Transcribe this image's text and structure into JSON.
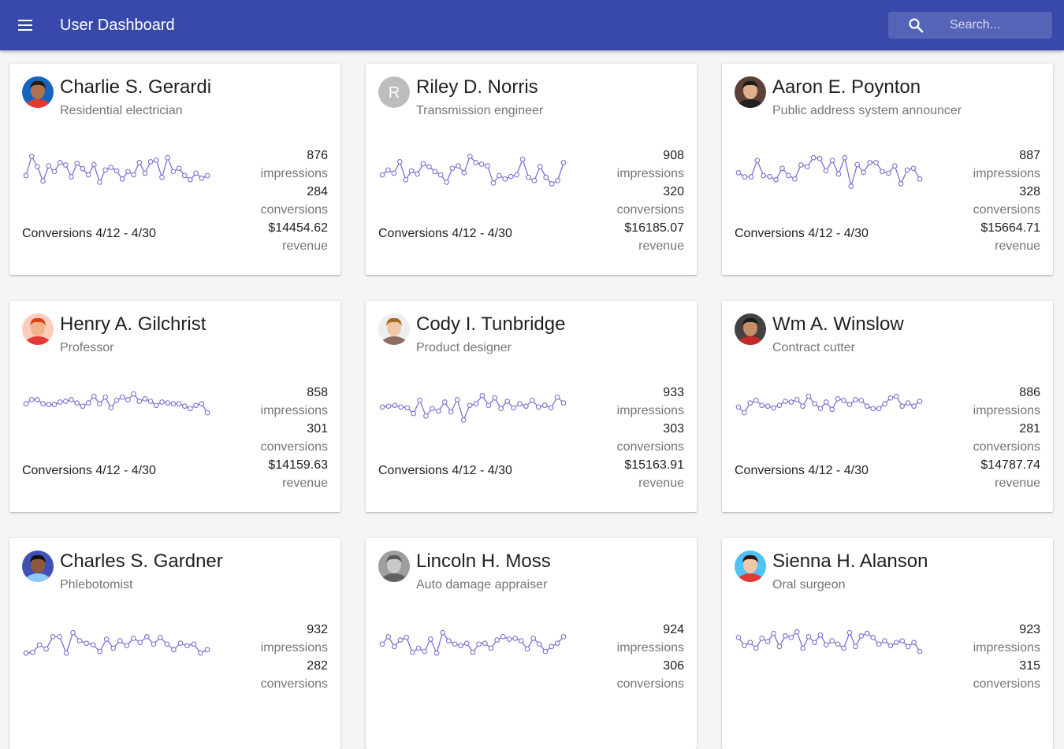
{
  "header": {
    "title": "User Dashboard",
    "search_placeholder": "Search...",
    "background": "#3949ab"
  },
  "spark_color": "#7e6fd1",
  "cards": [
    {
      "name": "Charlie S. Gerardi",
      "job": "Residential electrician",
      "avatar": {
        "type": "photo",
        "skin": "#b0714f",
        "hair": "#2b1a12",
        "bg": "#1565c0",
        "shirt": "#e53935"
      },
      "impressions": "876",
      "impressions_label": "impressions",
      "conversions": "284",
      "conversions_label": "conversions",
      "revenue": "$14454.62",
      "revenue_label": "revenue",
      "caption": "Conversions 4/12 - 4/30",
      "spark": [
        48,
        95,
        70,
        35,
        72,
        58,
        80,
        74,
        45,
        78,
        65,
        50,
        75,
        32,
        62,
        68,
        60,
        40,
        58,
        50,
        80,
        54,
        82,
        86,
        44,
        92,
        58,
        66,
        48,
        38,
        54,
        42,
        48
      ]
    },
    {
      "name": "Riley D. Norris",
      "job": "Transmission engineer",
      "avatar": {
        "type": "initial",
        "letter": "R",
        "bg": "#bdbdbd"
      },
      "impressions": "908",
      "impressions_label": "impressions",
      "conversions": "320",
      "conversions_label": "conversions",
      "revenue": "$16185.07",
      "revenue_label": "revenue",
      "caption": "Conversions 4/12 - 4/30",
      "spark": [
        50,
        62,
        54,
        82,
        38,
        60,
        52,
        77,
        70,
        58,
        50,
        32,
        66,
        72,
        55,
        95,
        80,
        76,
        72,
        30,
        48,
        40,
        46,
        50,
        88,
        44,
        36,
        70,
        44,
        28,
        36,
        80
      ]
    },
    {
      "name": "Aaron E. Poynton",
      "job": "Public address system announcer",
      "avatar": {
        "type": "photo",
        "skin": "#e0b08d",
        "hair": "#1b1b1b",
        "bg": "#5d4037",
        "shirt": "#212121"
      },
      "impressions": "887",
      "impressions_label": "impressions",
      "conversions": "328",
      "conversions_label": "conversions",
      "revenue": "$15664.71",
      "revenue_label": "revenue",
      "caption": "Conversions 4/12 - 4/30",
      "spark": [
        55,
        45,
        45,
        85,
        48,
        46,
        38,
        66,
        48,
        40,
        74,
        70,
        92,
        90,
        60,
        85,
        52,
        92,
        22,
        75,
        56,
        80,
        80,
        58,
        54,
        72,
        28,
        62,
        66,
        40
      ]
    },
    {
      "name": "Henry A. Gilchrist",
      "job": "Professor",
      "avatar": {
        "type": "photo",
        "skin": "#f1b48f",
        "hair": "#d84315",
        "bg": "#ffccbc",
        "shirt": "#e53935"
      },
      "impressions": "858",
      "impressions_label": "impressions",
      "conversions": "301",
      "conversions_label": "conversions",
      "revenue": "$14159.63",
      "revenue_label": "revenue",
      "caption": "Conversions 4/12 - 4/30",
      "spark": [
        70,
        80,
        80,
        70,
        68,
        68,
        74,
        76,
        80,
        72,
        64,
        72,
        88,
        70,
        86,
        60,
        78,
        86,
        80,
        94,
        76,
        82,
        76,
        66,
        74,
        72,
        70,
        70,
        64,
        58,
        66,
        70,
        48
      ]
    },
    {
      "name": "Cody I. Tunbridge",
      "job": "Product designer",
      "avatar": {
        "type": "photo",
        "skin": "#f0c8a8",
        "hair": "#a86a2a",
        "bg": "#eeeeee",
        "shirt": "#8d6e63"
      },
      "impressions": "933",
      "impressions_label": "impressions",
      "conversions": "303",
      "conversions_label": "conversions",
      "revenue": "$15163.91",
      "revenue_label": "revenue",
      "caption": "Conversions 4/12 - 4/30",
      "spark": [
        62,
        64,
        66,
        62,
        60,
        46,
        78,
        40,
        58,
        52,
        74,
        50,
        80,
        30,
        66,
        70,
        90,
        66,
        84,
        58,
        76,
        60,
        70,
        64,
        78,
        62,
        66,
        60,
        86,
        72
      ]
    },
    {
      "name": "Wm A. Winslow",
      "job": "Contract cutter",
      "avatar": {
        "type": "photo",
        "skin": "#c68d6a",
        "hair": "#1a1a1a",
        "bg": "#424242",
        "shirt": "#c62828"
      },
      "impressions": "886",
      "impressions_label": "impressions",
      "conversions": "281",
      "conversions_label": "conversions",
      "revenue": "$14787.74",
      "revenue_label": "revenue",
      "caption": "Conversions 4/12 - 4/30",
      "spark": [
        62,
        48,
        72,
        78,
        66,
        64,
        60,
        66,
        76,
        74,
        80,
        64,
        88,
        70,
        58,
        74,
        56,
        82,
        78,
        68,
        80,
        78,
        64,
        58,
        58,
        70,
        84,
        88,
        64,
        72,
        64,
        76
      ]
    },
    {
      "name": "Charles S. Gardner",
      "job": "Phlebotomist",
      "avatar": {
        "type": "photo",
        "skin": "#8d5a3b",
        "hair": "#111111",
        "bg": "#3f51b5",
        "shirt": "#90caf9"
      },
      "impressions": "932",
      "impressions_label": "impressions",
      "conversions": "282",
      "conversions_label": "conversions",
      "revenue": "",
      "revenue_label": "",
      "caption": "",
      "spark": [
        40,
        42,
        60,
        50,
        80,
        80,
        40,
        90,
        70,
        64,
        60,
        44,
        74,
        52,
        70,
        58,
        76,
        66,
        80,
        62,
        78,
        62,
        48,
        64,
        58,
        62,
        40,
        48
      ]
    },
    {
      "name": "Lincoln H. Moss",
      "job": "Auto damage appraiser",
      "avatar": {
        "type": "photo",
        "skin": "#c9c9c9",
        "hair": "#5a5a5a",
        "bg": "#9e9e9e",
        "shirt": "#616161"
      },
      "impressions": "924",
      "impressions_label": "impressions",
      "conversions": "306",
      "conversions_label": "conversions",
      "revenue": "",
      "revenue_label": "",
      "caption": "",
      "spark": [
        62,
        80,
        56,
        72,
        78,
        42,
        52,
        44,
        74,
        40,
        90,
        70,
        62,
        58,
        64,
        42,
        62,
        64,
        52,
        72,
        80,
        74,
        76,
        70,
        50,
        76,
        62,
        44,
        56,
        64,
        80
      ]
    },
    {
      "name": "Sienna H. Alanson",
      "job": "Oral surgeon",
      "avatar": {
        "type": "photo",
        "skin": "#f0c8a8",
        "hair": "#2b1a12",
        "bg": "#4fc3f7",
        "shirt": "#e53935"
      },
      "impressions": "923",
      "impressions_label": "impressions",
      "conversions": "315",
      "conversions_label": "conversions",
      "revenue": "",
      "revenue_label": "",
      "caption": "",
      "spark": [
        78,
        58,
        66,
        52,
        76,
        68,
        88,
        56,
        82,
        78,
        92,
        52,
        80,
        66,
        84,
        60,
        70,
        62,
        52,
        90,
        56,
        82,
        88,
        78,
        62,
        70,
        58,
        66,
        70,
        56,
        66,
        44
      ]
    }
  ]
}
